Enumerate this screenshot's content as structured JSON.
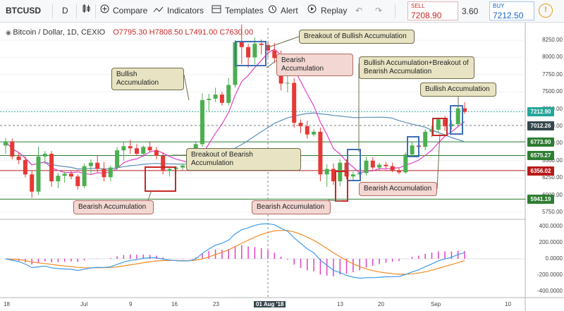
{
  "toolbar": {
    "symbol": "BTCUSD",
    "interval": "D",
    "compare": "Compare",
    "indicators": "Indicators",
    "templates": "Templates",
    "alert": "Alert",
    "replay": "Replay",
    "sell_label": "SELL",
    "sell_price": "7208.90",
    "spread": "3.60",
    "buy_label": "BUY",
    "buy_price": "7212.50"
  },
  "legend": {
    "title": "Bitcoin / Dollar, 1D, CEXIO",
    "o": "O7795.30",
    "h": "H7808.50",
    "l": "L7491.00",
    "c": "C7630.00"
  },
  "colors": {
    "bull": "#4caf50",
    "bear": "#e53935",
    "ma_pink": "#e040c8",
    "ma_blue": "#5b8fb9",
    "macd": "#3d9be9",
    "signal": "#f28c28",
    "hist": "#e040c8",
    "level_green": "#2e7d32",
    "level_red": "#b71c1c"
  },
  "chart_data": {
    "type": "candlestick",
    "y_axis_ticks": [
      5750,
      6000,
      6250,
      6500,
      6750,
      7000,
      7250,
      7500,
      7750,
      8000,
      8250
    ],
    "y_axis_labels": [
      "5750.00",
      "6000.00",
      "6250.00",
      "6500.00",
      "6750.00",
      "7000.00",
      "7250.00",
      "7500.00",
      "7750.00",
      "8000.00",
      "8250.00"
    ],
    "x_axis_labels": [
      "18",
      "Jul",
      "9",
      "16",
      "23",
      "01 Aug '18",
      "13",
      "20",
      "Sep",
      "10"
    ],
    "price_tags": [
      {
        "label": "7212.90",
        "value": 7212.9,
        "color": "#26a69a",
        "style": "current"
      },
      {
        "label": "7012.26",
        "value": 7012.26,
        "color": "#37474f",
        "style": "cursor"
      },
      {
        "label": "6773.90",
        "value": 6773.9,
        "color": "#2e7d32",
        "style": "level"
      },
      {
        "label": "6575.27",
        "value": 6575.27,
        "color": "#2e7d32",
        "style": "level"
      },
      {
        "label": "6356.02",
        "value": 6356.02,
        "color": "#b71c1c",
        "style": "level"
      },
      {
        "label": "5941.19",
        "value": 5941.19,
        "color": "#2e7d32",
        "style": "level"
      }
    ],
    "candles": [
      [
        6720,
        6830,
        6600,
        6780
      ],
      [
        6780,
        6820,
        6520,
        6560
      ],
      [
        6560,
        6620,
        6450,
        6510
      ],
      [
        6510,
        6560,
        6260,
        6300
      ],
      [
        6300,
        6360,
        5960,
        6050
      ],
      [
        6050,
        6700,
        6000,
        6560
      ],
      [
        6560,
        6640,
        6450,
        6600
      ],
      [
        6600,
        6640,
        6120,
        6200
      ],
      [
        6200,
        6320,
        6100,
        6280
      ],
      [
        6280,
        6340,
        6180,
        6310
      ],
      [
        6310,
        6360,
        6230,
        6270
      ],
      [
        6270,
        6300,
        6080,
        6130
      ],
      [
        6130,
        6460,
        6100,
        6420
      ],
      [
        6420,
        6520,
        6300,
        6470
      ],
      [
        6470,
        6580,
        6330,
        6380
      ],
      [
        6380,
        6480,
        6200,
        6260
      ],
      [
        6260,
        6430,
        6200,
        6400
      ],
      [
        6400,
        6700,
        6350,
        6650
      ],
      [
        6650,
        6780,
        6500,
        6710
      ],
      [
        6710,
        6800,
        6600,
        6680
      ],
      [
        6680,
        6740,
        6570,
        6600
      ],
      [
        6600,
        6720,
        6550,
        6700
      ],
      [
        6700,
        6780,
        6620,
        6650
      ],
      [
        6650,
        6700,
        6520,
        6570
      ],
      [
        6570,
        6620,
        6300,
        6350
      ],
      [
        6350,
        6410,
        6270,
        6380
      ],
      [
        6380,
        6420,
        6330,
        6400
      ],
      [
        6400,
        6460,
        6360,
        6430
      ],
      [
        6430,
        6500,
        6380,
        6480
      ],
      [
        6480,
        6770,
        6440,
        6740
      ],
      [
        6740,
        7480,
        6700,
        7380
      ],
      [
        7380,
        7470,
        7220,
        7400
      ],
      [
        7400,
        7560,
        7350,
        7460
      ],
      [
        7460,
        7500,
        7300,
        7340
      ],
      [
        7340,
        7700,
        7300,
        7600
      ],
      [
        7600,
        8250,
        7560,
        8220
      ],
      [
        8220,
        8480,
        7900,
        8150
      ],
      [
        8150,
        8200,
        7850,
        8000
      ],
      [
        8000,
        8290,
        7900,
        8200
      ],
      [
        8200,
        8260,
        8040,
        8180
      ],
      [
        8180,
        8230,
        8000,
        8100
      ],
      [
        8100,
        8210,
        7920,
        7990
      ],
      [
        7990,
        8100,
        7520,
        7620
      ],
      [
        7620,
        7810,
        7490,
        7630
      ],
      [
        7630,
        7700,
        6980,
        7050
      ],
      [
        7050,
        7100,
        6900,
        7000
      ],
      [
        7000,
        7080,
        6820,
        6880
      ],
      [
        6880,
        6960,
        6850,
        6920
      ],
      [
        6920,
        6980,
        6200,
        6300
      ],
      [
        6300,
        6450,
        6120,
        6380
      ],
      [
        6380,
        6460,
        6150,
        6200
      ],
      [
        6200,
        6520,
        6130,
        6470
      ],
      [
        6470,
        6520,
        6230,
        6270
      ],
      [
        6270,
        6340,
        6200,
        6300
      ],
      [
        6300,
        6360,
        6260,
        6320
      ],
      [
        6320,
        6560,
        6280,
        6500
      ],
      [
        6500,
        6550,
        6350,
        6400
      ],
      [
        6400,
        6470,
        6360,
        6440
      ],
      [
        6440,
        6480,
        6380,
        6420
      ],
      [
        6420,
        6470,
        6330,
        6360
      ],
      [
        6360,
        6400,
        6300,
        6330
      ],
      [
        6330,
        6620,
        6310,
        6590
      ],
      [
        6590,
        6780,
        6560,
        6720
      ],
      [
        6720,
        6760,
        6600,
        6700
      ],
      [
        6700,
        6960,
        6650,
        6920
      ],
      [
        6920,
        7000,
        6840,
        6950
      ],
      [
        6950,
        7130,
        6900,
        7100
      ],
      [
        7100,
        7150,
        6930,
        7000
      ],
      [
        7000,
        7080,
        6950,
        7030
      ],
      [
        7030,
        7300,
        7000,
        7260
      ],
      [
        7260,
        7350,
        7180,
        7210
      ]
    ],
    "annotations": [
      {
        "text": "Bullish Accumulation",
        "type": "bull"
      },
      {
        "text": "Breakout of Bullish Accumulation",
        "type": "bull"
      },
      {
        "text": "Bearish Accumulation",
        "type": "bear"
      },
      {
        "text": "Bullish Accumulation+Breakout of Bearish Accumulation",
        "type": "bull"
      },
      {
        "text": "Bullish Accumulation",
        "type": "bull"
      },
      {
        "text": "Breakout of Bearish Accumulation",
        "type": "bull"
      },
      {
        "text": "Bearish Accumulation",
        "type": "bear"
      },
      {
        "text": "Bearish Accumulation",
        "type": "bear"
      },
      {
        "text": "Bearish Accumulation",
        "type": "bear"
      }
    ],
    "macd_axis_labels": [
      "400.0000",
      "200.0000",
      "0.0000",
      "-200.0000",
      "-400.0000"
    ],
    "macd_axis_values": [
      400,
      200,
      0,
      -200,
      -400
    ]
  }
}
